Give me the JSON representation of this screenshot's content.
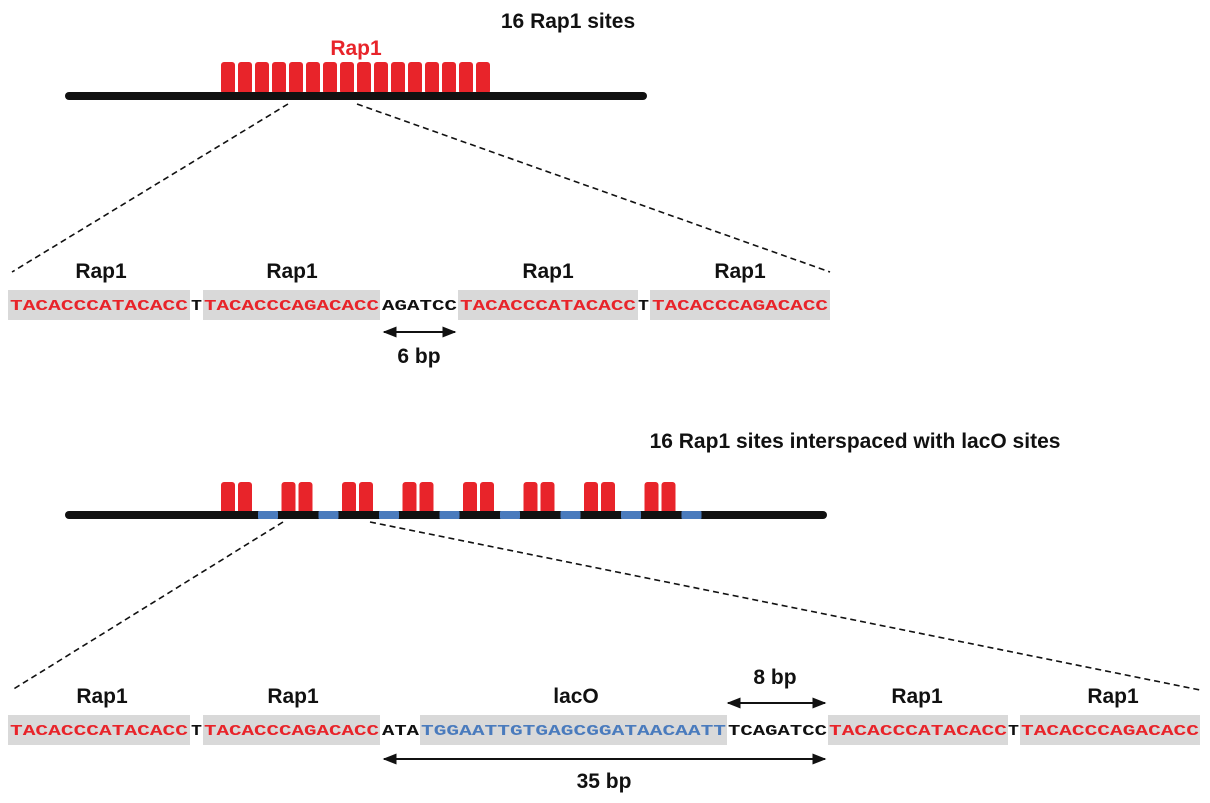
{
  "colors": {
    "rap1": "#e8242a",
    "laco": "#4a7bbd",
    "backbone": "#111111",
    "site_bg": "#d9d9d9"
  },
  "panel_top": {
    "title": "16 Rap1 sites",
    "cluster_label": "Rap1",
    "site_count": 16,
    "site_labels": [
      "Rap1",
      "Rap1",
      "Rap1",
      "Rap1"
    ],
    "sequence": {
      "rap1_site_a": "TACACCCATACACC",
      "linker_t": "T",
      "rap1_site_b": "TACACCCAGACACC",
      "spacer": "AGATCC",
      "rap1_site_c": "TACACCCATACACC",
      "linker_t2": "T",
      "rap1_site_d": "TACACCCAGACACC"
    },
    "spacing_label": "6 bp"
  },
  "panel_bottom": {
    "title": "16 Rap1 sites interspaced with lacO sites",
    "rap1_pairs": 8,
    "laco_count": 8,
    "site_labels": [
      "Rap1",
      "Rap1",
      "lacO",
      "Rap1",
      "Rap1"
    ],
    "sequence": {
      "rap1_site_a": "TACACCCATACACC",
      "linker_t": "T",
      "rap1_site_b": "TACACCCAGACACC",
      "pre_laco": "ATA",
      "laco_site": "TGGAATTGTGAGCGGATAACAATT",
      "post_laco": "TCAGATCC",
      "rap1_site_c": "TACACCCATACACC",
      "linker_t2": "T",
      "rap1_site_d": "TACACCCAGACACC"
    },
    "spacing_short_label": "8 bp",
    "spacing_long_label": "35 bp"
  }
}
